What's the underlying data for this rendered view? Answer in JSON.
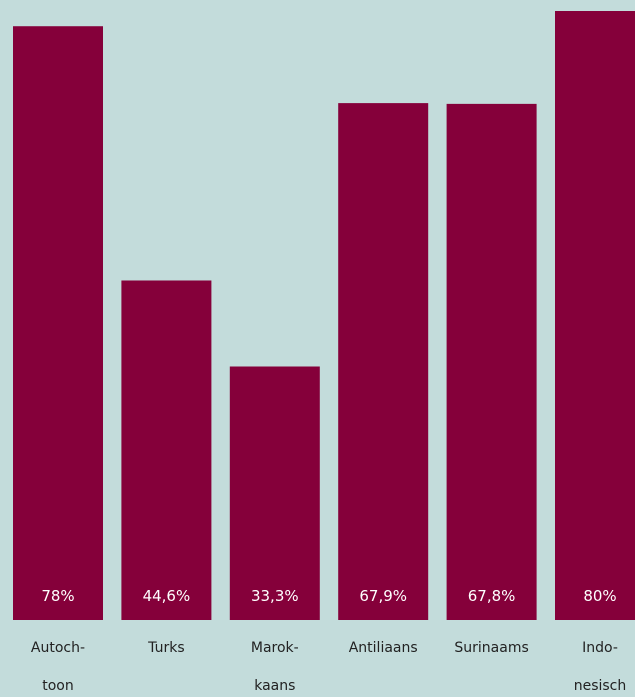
{
  "chart_data": {
    "type": "bar",
    "categories": [
      [
        "Autoch-",
        "toon"
      ],
      [
        "Turks"
      ],
      [
        "Marok-",
        "kaans"
      ],
      [
        "Antiliaans"
      ],
      [
        "Surinaams"
      ],
      [
        "Indo-",
        "nesisch"
      ]
    ],
    "values": [
      78,
      44.6,
      33.3,
      67.9,
      67.8,
      80
    ],
    "value_labels": [
      "78%",
      "44,6%",
      "33,3%",
      "67,9%",
      "67,8%",
      "80%"
    ],
    "title": "",
    "xlabel": "",
    "ylabel": "",
    "ylim": [
      0,
      80
    ],
    "grid": false,
    "legend": "none"
  },
  "colors": {
    "background": "#c3dcdb",
    "bar": "#85003a",
    "value_label": "#ffffff",
    "category_label": "#222222"
  }
}
